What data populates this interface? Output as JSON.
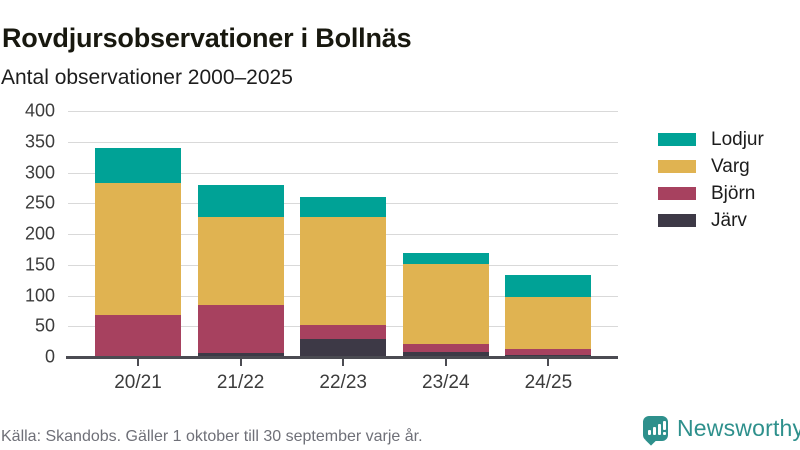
{
  "header": {
    "title": "Rovdjursobservationer i Bollnäs",
    "subtitle": "Antal observationer 2000–2025"
  },
  "chart_data": {
    "type": "bar",
    "stacked": true,
    "title": "Rovdjursobservationer i Bollnäs",
    "subtitle": "Antal observationer 2000–2025",
    "categories": [
      "20/21",
      "21/22",
      "22/23",
      "23/24",
      "24/25"
    ],
    "series": [
      {
        "name": "Järv",
        "color": "#3d3946",
        "values": [
          2,
          6,
          29,
          8,
          4
        ]
      },
      {
        "name": "Björn",
        "color": "#a7415f",
        "values": [
          66,
          79,
          23,
          13,
          9
        ]
      },
      {
        "name": "Varg",
        "color": "#e0b351",
        "values": [
          215,
          142,
          176,
          131,
          84
        ]
      },
      {
        "name": "Lodjur",
        "color": "#00a296",
        "values": [
          57,
          52,
          32,
          17,
          37
        ]
      }
    ],
    "ylim": [
      0,
      400
    ],
    "yticks": [
      0,
      50,
      100,
      150,
      200,
      250,
      300,
      350,
      400
    ],
    "grid": true,
    "legend_position": "right",
    "legend_order": [
      "Lodjur",
      "Varg",
      "Björn",
      "Järv"
    ]
  },
  "footer": {
    "source": "Källa: Skandobs. Gäller 1 oktober till 30 september varje år.",
    "brand": "Newsworthy"
  },
  "colors": {
    "accent_teal": "#00a296",
    "gold": "#e0b351",
    "maroon": "#a7415f",
    "dark": "#3d3946",
    "brand_teal": "#2e908c",
    "gridline": "#d9d9d9",
    "axis": "#4b4b52"
  }
}
